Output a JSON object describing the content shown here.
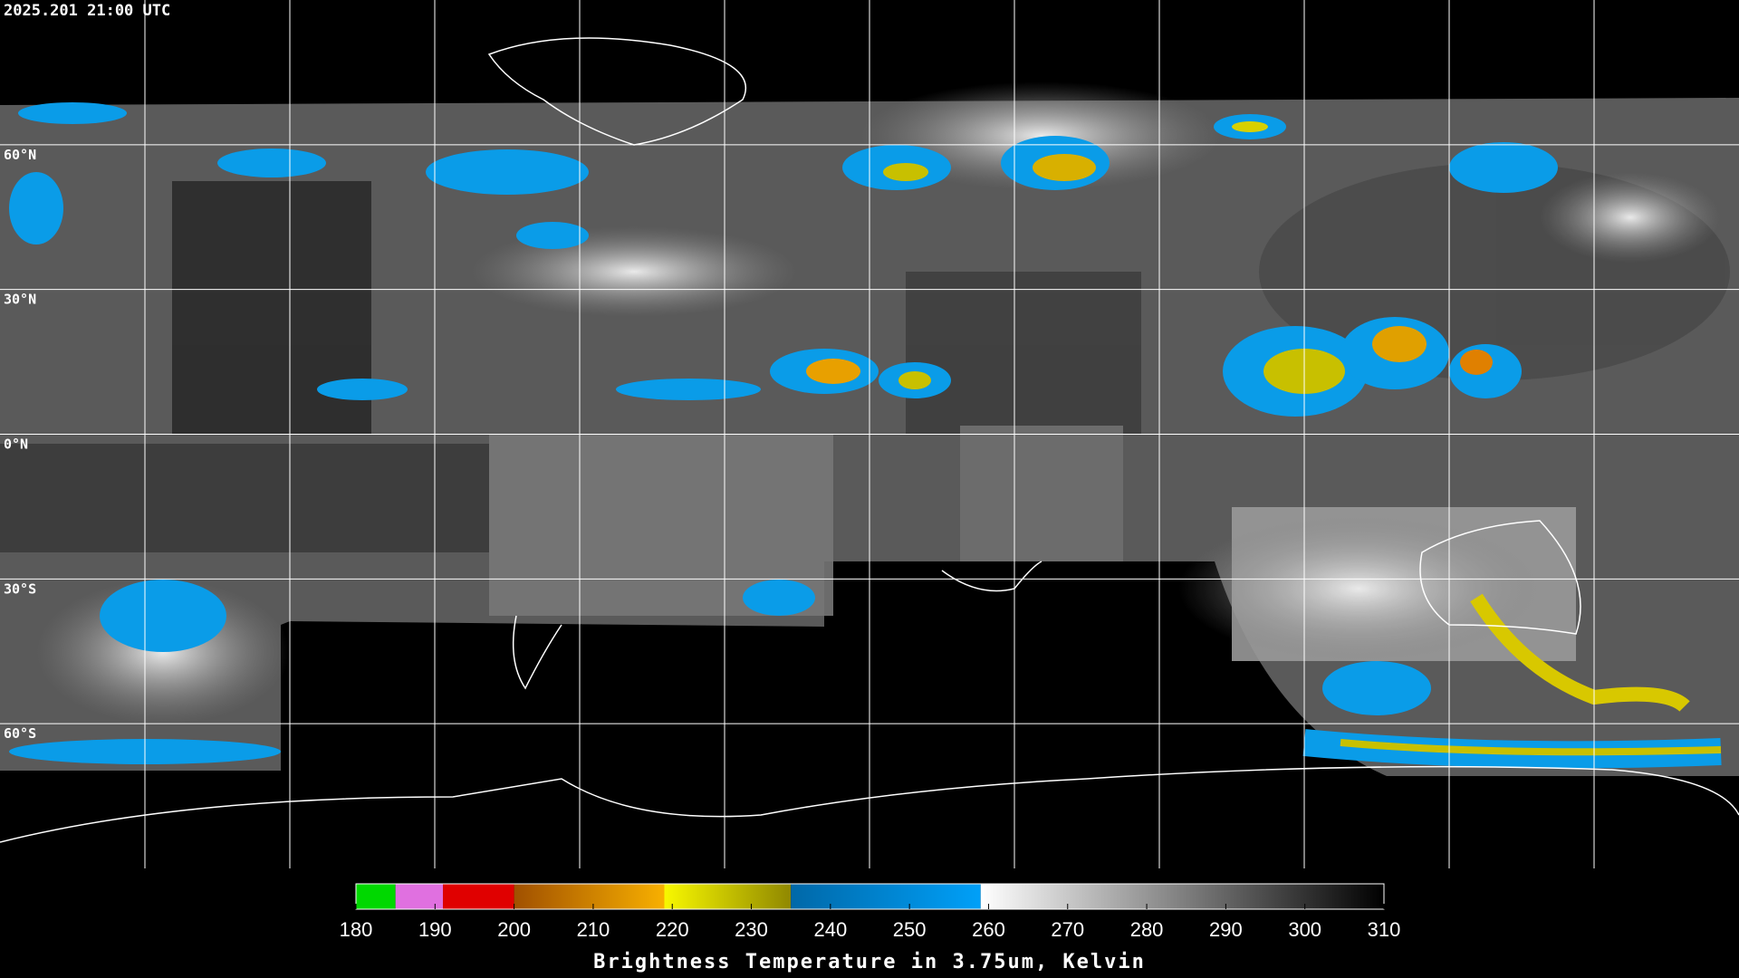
{
  "header": {
    "timestamp": "2025.201 21:00 UTC"
  },
  "latitude_lines": [
    {
      "value": 60,
      "label": "60°N"
    },
    {
      "value": 30,
      "label": "30°N"
    },
    {
      "value": 0,
      "label": "0°N"
    },
    {
      "value": -30,
      "label": "30°S"
    },
    {
      "value": -60,
      "label": "60°S"
    }
  ],
  "colorbar": {
    "title": "Brightness Temperature in 3.75um, Kelvin",
    "range": [
      180,
      310
    ],
    "ticks": [
      180,
      190,
      200,
      210,
      220,
      230,
      240,
      250,
      260,
      270,
      280,
      290,
      300,
      310
    ],
    "segments": [
      {
        "from": 180,
        "to": 185,
        "color_start": "#00d800",
        "color_end": "#00d800"
      },
      {
        "from": 185,
        "to": 191,
        "color_start": "#e070e0",
        "color_end": "#e070e0"
      },
      {
        "from": 191,
        "to": 200,
        "color_start": "#e00000",
        "color_end": "#e00000"
      },
      {
        "from": 200,
        "to": 219,
        "color_start": "#a05000",
        "color_end": "#f8b000"
      },
      {
        "from": 219,
        "to": 235,
        "color_start": "#f8f800",
        "color_end": "#908800"
      },
      {
        "from": 235,
        "to": 259,
        "color_start": "#0068a8",
        "color_end": "#00a0f8"
      },
      {
        "from": 259,
        "to": 310,
        "color_start": "#ffffff",
        "color_end": "#000000"
      }
    ]
  }
}
